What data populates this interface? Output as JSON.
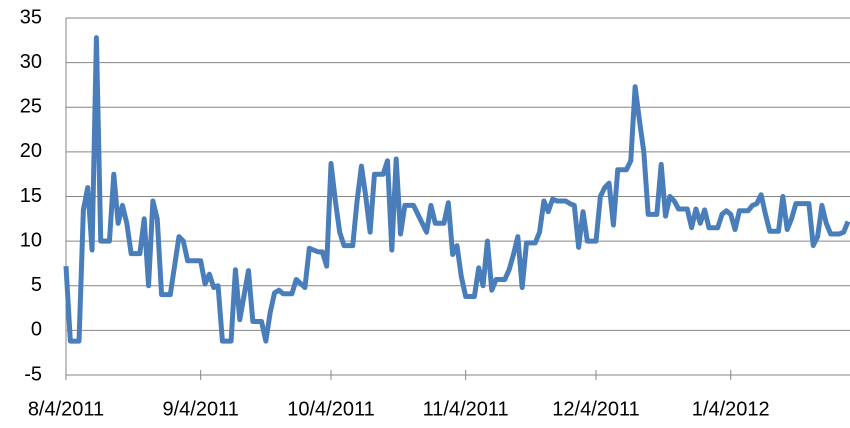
{
  "chart_data": {
    "type": "line",
    "color": "#4a7ebb",
    "grid": true,
    "xlim": [
      "8/4/2011",
      "1/31/2012"
    ],
    "xticks": [
      "8/4/2011",
      "9/4/2011",
      "10/4/2011",
      "11/4/2011",
      "12/4/2011",
      "1/4/2012"
    ],
    "ylim": [
      -5,
      35
    ],
    "yticks": [
      -5,
      0,
      5,
      10,
      15,
      20,
      25,
      30,
      35
    ],
    "x": [
      "8/4/2011",
      "8/5/2011",
      "8/7/2011",
      "8/8/2011",
      "8/9/2011",
      "8/10/2011",
      "8/11/2011",
      "8/12/2011",
      "8/14/2011",
      "8/15/2011",
      "8/16/2011",
      "8/17/2011",
      "8/18/2011",
      "8/19/2011",
      "8/21/2011",
      "8/22/2011",
      "8/23/2011",
      "8/24/2011",
      "8/25/2011",
      "8/26/2011",
      "8/28/2011",
      "8/30/2011",
      "8/31/2011",
      "9/1/2011",
      "9/4/2011",
      "9/5/2011",
      "9/6/2011",
      "9/7/2011",
      "9/8/2011",
      "9/9/2011",
      "9/11/2011",
      "9/12/2011",
      "9/13/2011",
      "9/15/2011",
      "9/16/2011",
      "9/18/2011",
      "9/19/2011",
      "9/20/2011",
      "9/21/2011",
      "9/22/2011",
      "9/23/2011",
      "9/25/2011",
      "9/26/2011",
      "9/28/2011",
      "9/29/2011",
      "10/1/2011",
      "10/2/2011",
      "10/3/2011",
      "10/4/2011",
      "10/5/2011",
      "10/6/2011",
      "10/7/2011",
      "10/9/2011",
      "10/10/2011",
      "10/11/2011",
      "10/12/2011",
      "10/13/2011",
      "10/14/2011",
      "10/16/2011",
      "10/17/2011",
      "10/18/2011",
      "10/19/2011",
      "10/20/2011",
      "10/21/2011",
      "10/23/2011",
      "10/24/2011",
      "10/25/2011",
      "10/26/2011",
      "10/27/2011",
      "10/28/2011",
      "10/30/2011",
      "10/31/2011",
      "11/1/2011",
      "11/2/2011",
      "11/3/2011",
      "11/4/2011",
      "11/6/2011",
      "11/7/2011",
      "11/8/2011",
      "11/9/2011",
      "11/10/2011",
      "11/11/2011",
      "11/13/2011",
      "11/14/2011",
      "11/15/2011",
      "11/16/2011",
      "11/17/2011",
      "11/18/2011",
      "11/20/2011",
      "11/21/2011",
      "11/22/2011",
      "11/23/2011",
      "11/24/2011",
      "11/25/2011",
      "11/27/2011",
      "11/28/2011",
      "11/29/2011",
      "11/30/2011",
      "12/1/2011",
      "12/2/2011",
      "12/4/2011",
      "12/5/2011",
      "12/6/2011",
      "12/7/2011",
      "12/8/2011",
      "12/9/2011",
      "12/11/2011",
      "12/12/2011",
      "12/13/2011",
      "12/14/2011",
      "12/15/2011",
      "12/16/2011",
      "12/18/2011",
      "12/19/2011",
      "12/20/2011",
      "12/21/2011",
      "12/22/2011",
      "12/23/2011",
      "12/25/2011",
      "12/26/2011",
      "12/27/2011",
      "12/28/2011",
      "12/29/2011",
      "12/30/2011",
      "1/1/2012",
      "1/2/2012",
      "1/3/2012",
      "1/4/2012",
      "1/5/2012",
      "1/6/2012",
      "1/8/2012",
      "1/9/2012",
      "1/10/2012",
      "1/11/2012",
      "1/12/2012",
      "1/13/2012",
      "1/15/2012",
      "1/16/2012",
      "1/17/2012",
      "1/18/2012",
      "1/19/2012",
      "1/22/2012",
      "1/23/2012",
      "1/24/2012",
      "1/25/2012",
      "1/26/2012",
      "1/27/2012",
      "1/29/2012",
      "1/30/2012",
      "1/31/2012"
    ],
    "values": [
      7.2,
      -1.2,
      -1.2,
      13.5,
      16,
      9,
      32.8,
      10,
      10,
      17.5,
      12,
      14,
      12,
      8.6,
      8.6,
      12.5,
      5,
      14.5,
      12.5,
      4,
      4,
      10.5,
      10,
      7.8,
      7.8,
      5.2,
      6.3,
      4.8,
      5,
      -1.2,
      -1.2,
      6.8,
      1.2,
      6.7,
      1,
      1,
      -1.2,
      2,
      4.2,
      4.5,
      4.1,
      4.1,
      5.7,
      4.8,
      9.2,
      8.8,
      8.8,
      7.2,
      18.7,
      14.5,
      11,
      9.5,
      9.5,
      14.5,
      18.4,
      15,
      11,
      17.5,
      17.5,
      19,
      9,
      19.2,
      10.8,
      14,
      14,
      13,
      12,
      11,
      14,
      12,
      12,
      14.3,
      8.5,
      9.5,
      6,
      3.8,
      3.8,
      7,
      5,
      10,
      4.5,
      5.7,
      5.7,
      6.8,
      8.5,
      10.5,
      4.8,
      9.8,
      9.8,
      11,
      14.5,
      13.3,
      14.7,
      14.5,
      14.5,
      14.2,
      14,
      9.3,
      13.3,
      10,
      10,
      15,
      16,
      16.5,
      11.8,
      18,
      18,
      19,
      27.3,
      23.5,
      20,
      13,
      13,
      18.6,
      12.8,
      15,
      14.5,
      13.6,
      13.6,
      11.5,
      13.6,
      12,
      13.5,
      11.5,
      11.5,
      13,
      13.4,
      13,
      11.3,
      13.4,
      13.4,
      14,
      14.2,
      15.2,
      13,
      11.1,
      11.1,
      15,
      11.3,
      12.5,
      14.2,
      14.2,
      9.5,
      10.5,
      14,
      12,
      10.8,
      10.8,
      11,
      12.2
    ]
  }
}
